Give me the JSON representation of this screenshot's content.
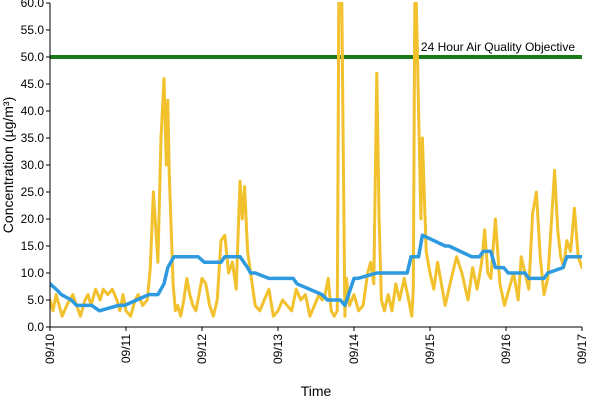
{
  "chart_data": {
    "type": "line",
    "xlabel": "Time",
    "ylabel": "Concentration (µg/m³)",
    "ylim": [
      0,
      60
    ],
    "xlim": [
      "09/10",
      "09/17"
    ],
    "grid": false,
    "y_ticks": [
      "0.0",
      "5.0",
      "10.0",
      "15.0",
      "20.0",
      "25.0",
      "30.0",
      "35.0",
      "40.0",
      "45.0",
      "50.0",
      "55.0",
      "60.0"
    ],
    "x_ticks": [
      "09/10",
      "09/11",
      "09/12",
      "09/13",
      "09/14",
      "09/15",
      "09/16",
      "09/17"
    ],
    "reference_line": {
      "label": "24 Hour Air Quality Objective",
      "value": 50.0,
      "color": "#1a7a1a"
    },
    "series": [
      {
        "color": "#f2c12e",
        "x": [
          0,
          0.04,
          0.08,
          0.12,
          0.16,
          0.22,
          0.3,
          0.35,
          0.4,
          0.46,
          0.5,
          0.54,
          0.6,
          0.66,
          0.7,
          0.76,
          0.82,
          0.88,
          0.92,
          0.96,
          1.0,
          1.06,
          1.12,
          1.16,
          1.22,
          1.28,
          1.32,
          1.36,
          1.42,
          1.46,
          1.5,
          1.53,
          1.55,
          1.57,
          1.6,
          1.62,
          1.65,
          1.68,
          1.72,
          1.76,
          1.8,
          1.84,
          1.88,
          1.92,
          1.96,
          2.0,
          2.05,
          2.1,
          2.15,
          2.2,
          2.25,
          2.3,
          2.35,
          2.4,
          2.45,
          2.5,
          2.53,
          2.56,
          2.6,
          2.65,
          2.7,
          2.76,
          2.82,
          2.88,
          2.94,
          3.0,
          3.06,
          3.12,
          3.18,
          3.24,
          3.3,
          3.36,
          3.42,
          3.48,
          3.54,
          3.58,
          3.62,
          3.66,
          3.7,
          3.74,
          3.78,
          3.8,
          3.82,
          3.84,
          3.86,
          3.88,
          3.9,
          3.94,
          4.0,
          4.06,
          4.12,
          4.18,
          4.22,
          4.26,
          4.3,
          4.33,
          4.36,
          4.4,
          4.45,
          4.5,
          4.55,
          4.6,
          4.66,
          4.72,
          4.76,
          4.78,
          4.8,
          4.82,
          4.85,
          4.88,
          4.9,
          4.95,
          5.0,
          5.05,
          5.1,
          5.15,
          5.2,
          5.28,
          5.35,
          5.42,
          5.5,
          5.56,
          5.62,
          5.68,
          5.72,
          5.76,
          5.8,
          5.86,
          5.92,
          5.98,
          6.04,
          6.1,
          6.16,
          6.2,
          6.25,
          6.3,
          6.35,
          6.4,
          6.45,
          6.5,
          6.55,
          6.6,
          6.64,
          6.68,
          6.72,
          6.76,
          6.8,
          6.85,
          6.9,
          6.95,
          7.0
        ],
        "values": [
          5,
          3,
          6,
          4,
          2,
          4,
          6,
          4,
          2,
          5,
          6,
          4,
          7,
          5,
          7,
          6,
          7,
          5,
          3,
          6,
          3,
          2,
          5,
          6,
          4,
          5,
          11,
          25,
          12,
          35,
          46,
          30,
          42,
          28,
          16,
          8,
          3,
          4,
          2,
          5,
          9,
          6,
          4,
          3,
          6,
          9,
          8,
          4,
          2,
          5,
          16,
          17,
          10,
          12,
          7,
          27,
          20,
          26,
          14,
          9,
          4,
          3,
          5,
          7,
          2,
          3,
          5,
          4,
          3,
          7,
          5,
          6,
          2,
          4,
          6,
          5,
          6,
          9,
          3,
          2,
          3,
          60,
          60,
          60,
          30,
          2,
          9,
          4,
          6,
          3,
          4,
          10,
          12,
          8,
          47,
          20,
          5,
          3,
          6,
          3,
          8,
          5,
          9,
          5,
          2,
          7,
          60,
          60,
          40,
          20,
          35,
          14,
          10,
          7,
          12,
          8,
          4,
          9,
          13,
          10,
          5,
          11,
          7,
          12,
          18,
          10,
          9,
          20,
          8,
          4,
          7,
          10,
          5,
          13,
          10,
          7,
          21,
          25,
          13,
          6,
          9,
          20,
          29,
          18,
          13,
          11,
          16,
          14,
          22,
          13,
          11
        ]
      },
      {
        "color": "#2e9ae0",
        "x": [
          0,
          0.08,
          0.15,
          0.28,
          0.35,
          0.55,
          0.65,
          0.9,
          0.98,
          1.3,
          1.42,
          1.5,
          1.55,
          1.63,
          1.75,
          1.95,
          2.03,
          2.25,
          2.3,
          2.5,
          2.6,
          2.64,
          2.7,
          2.88,
          2.93,
          3.2,
          3.25,
          3.58,
          3.65,
          3.82,
          3.88,
          4.0,
          4.05,
          4.3,
          4.33,
          4.7,
          4.75,
          4.8,
          4.85,
          4.9,
          5.2,
          5.25,
          5.55,
          5.65,
          5.7,
          5.8,
          5.86,
          5.97,
          6.03,
          6.25,
          6.3,
          6.5,
          6.55,
          6.75,
          6.8,
          7.0
        ],
        "values": [
          8,
          7,
          6,
          5,
          4,
          4,
          3,
          4,
          4,
          6,
          6,
          8,
          11,
          13,
          13,
          13,
          12,
          12,
          13,
          13,
          11,
          10,
          10,
          9,
          9,
          9,
          8,
          6,
          5,
          5,
          4,
          9,
          9,
          10,
          10,
          10,
          13,
          13,
          13,
          17,
          15,
          15,
          13,
          13,
          14,
          14,
          11,
          11,
          10,
          10,
          9,
          9,
          10,
          11,
          13,
          13
        ]
      }
    ]
  }
}
